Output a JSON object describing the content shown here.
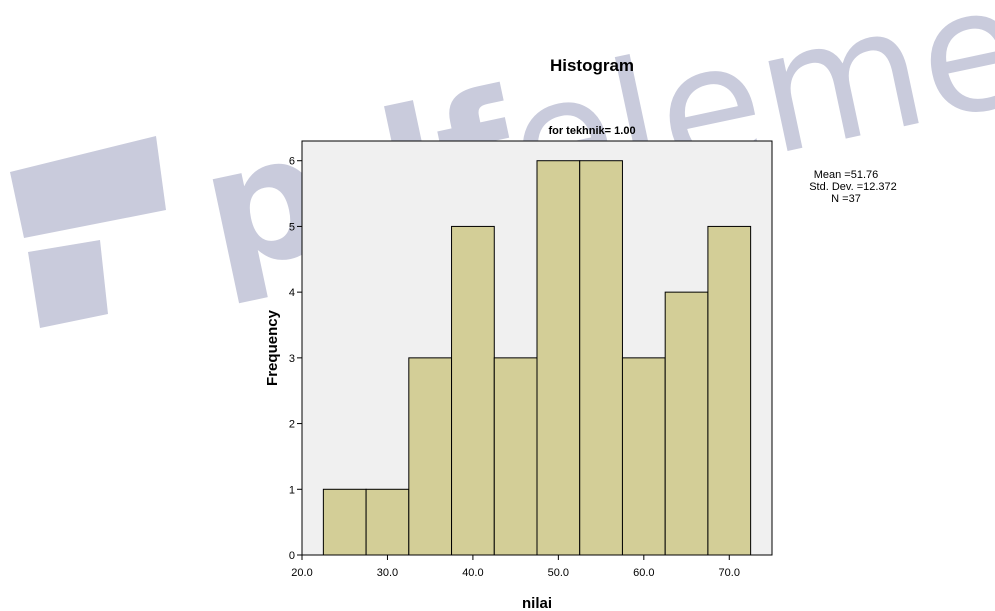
{
  "watermark": {
    "text": "pdfelement",
    "color": "#c9cbdc"
  },
  "colors": {
    "bar_fill": "#d3ce97",
    "plot_bg": "#f0f0f0",
    "outline": "#000000"
  },
  "chart_data": {
    "type": "bar",
    "title": "Histogram",
    "subtitle": "for tekhnik= 1.00",
    "xlabel": "nilai",
    "ylabel": "Frequency",
    "xlim": [
      20,
      75
    ],
    "ylim": [
      0,
      6.3
    ],
    "bin_width": 5,
    "bins": [
      {
        "start": 22.5,
        "end": 27.5,
        "count": 1
      },
      {
        "start": 27.5,
        "end": 32.5,
        "count": 1
      },
      {
        "start": 32.5,
        "end": 37.5,
        "count": 3
      },
      {
        "start": 37.5,
        "end": 42.5,
        "count": 5
      },
      {
        "start": 42.5,
        "end": 47.5,
        "count": 3
      },
      {
        "start": 47.5,
        "end": 52.5,
        "count": 6
      },
      {
        "start": 52.5,
        "end": 57.5,
        "count": 6
      },
      {
        "start": 57.5,
        "end": 62.5,
        "count": 3
      },
      {
        "start": 62.5,
        "end": 67.5,
        "count": 4
      },
      {
        "start": 67.5,
        "end": 72.5,
        "count": 5
      }
    ],
    "x_ticks": [
      {
        "value": 20,
        "label": "20.0"
      },
      {
        "value": 30,
        "label": "30.0"
      },
      {
        "value": 40,
        "label": "40.0"
      },
      {
        "value": 50,
        "label": "50.0"
      },
      {
        "value": 60,
        "label": "60.0"
      },
      {
        "value": 70,
        "label": "70.0"
      }
    ],
    "y_ticks": [
      {
        "value": 0,
        "label": "0"
      },
      {
        "value": 1,
        "label": "1"
      },
      {
        "value": 2,
        "label": "2"
      },
      {
        "value": 3,
        "label": "3"
      },
      {
        "value": 4,
        "label": "4"
      },
      {
        "value": 5,
        "label": "5"
      },
      {
        "value": 6,
        "label": "6"
      }
    ],
    "grid": false,
    "legend": "none",
    "stats": {
      "mean": "Mean =51.76",
      "std_dev": "Std. Dev. =12.372",
      "n": "N =37"
    }
  }
}
